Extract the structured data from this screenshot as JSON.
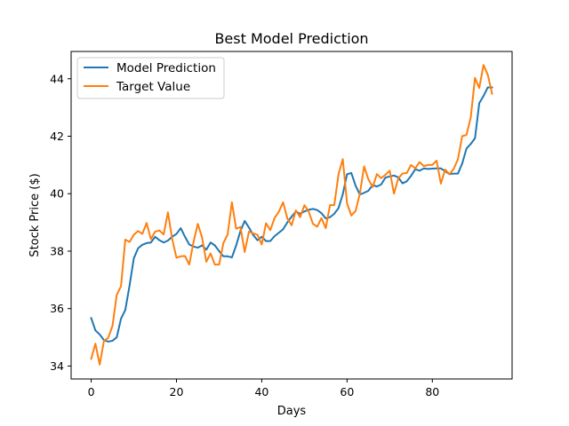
{
  "chart_data": {
    "type": "line",
    "title": "Best Model Prediction",
    "xlabel": "Days",
    "ylabel": "Stock Price ($)",
    "xlim": [
      -4.7,
      98.7
    ],
    "ylim": [
      33.55,
      44.95
    ],
    "xticks": [
      0,
      20,
      40,
      60,
      80
    ],
    "yticks": [
      34,
      36,
      38,
      40,
      42,
      44
    ],
    "grid": false,
    "legend_position": "top-left",
    "x": [
      0,
      1,
      2,
      3,
      4,
      5,
      6,
      7,
      8,
      9,
      10,
      11,
      12,
      13,
      14,
      15,
      16,
      17,
      18,
      19,
      20,
      21,
      22,
      23,
      24,
      25,
      26,
      27,
      28,
      29,
      30,
      31,
      32,
      33,
      34,
      35,
      36,
      37,
      38,
      39,
      40,
      41,
      42,
      43,
      44,
      45,
      46,
      47,
      48,
      49,
      50,
      51,
      52,
      53,
      54,
      55,
      56,
      57,
      58,
      59,
      60,
      61,
      62,
      63,
      64,
      65,
      66,
      67,
      68,
      69,
      70,
      71,
      72,
      73,
      74,
      75,
      76,
      77,
      78,
      79,
      80,
      81,
      82,
      83,
      84,
      85,
      86,
      87,
      88,
      89,
      90,
      91,
      92,
      93,
      94
    ],
    "series": [
      {
        "name": "Model Prediction",
        "color": "#1f77b4",
        "values": [
          35.67,
          35.24,
          35.1,
          34.9,
          34.85,
          34.88,
          35.0,
          35.65,
          35.95,
          36.8,
          37.75,
          38.1,
          38.22,
          38.28,
          38.3,
          38.5,
          38.38,
          38.3,
          38.37,
          38.5,
          38.6,
          38.8,
          38.5,
          38.23,
          38.16,
          38.12,
          38.2,
          38.05,
          38.3,
          38.2,
          38.0,
          37.82,
          37.82,
          37.78,
          38.2,
          38.7,
          39.05,
          38.82,
          38.56,
          38.38,
          38.5,
          38.35,
          38.35,
          38.52,
          38.64,
          38.76,
          39.0,
          39.2,
          39.38,
          39.3,
          39.38,
          39.44,
          39.47,
          39.43,
          39.32,
          39.14,
          39.18,
          39.3,
          39.5,
          39.98,
          40.68,
          40.72,
          40.28,
          39.97,
          40.03,
          40.1,
          40.3,
          40.25,
          40.32,
          40.56,
          40.6,
          40.63,
          40.57,
          40.36,
          40.43,
          40.62,
          40.85,
          40.8,
          40.88,
          40.86,
          40.87,
          40.88,
          40.88,
          40.78,
          40.68,
          40.7,
          40.7,
          41.05,
          41.57,
          41.73,
          41.93,
          43.15,
          43.4,
          43.7,
          43.7
        ]
      },
      {
        "name": "Target Value",
        "color": "#ff7f0e",
        "values": [
          34.25,
          34.78,
          34.05,
          34.88,
          34.98,
          35.4,
          36.48,
          36.78,
          38.4,
          38.32,
          38.57,
          38.7,
          38.6,
          38.98,
          38.42,
          38.68,
          38.72,
          38.58,
          39.35,
          38.42,
          37.77,
          37.82,
          37.83,
          37.53,
          38.32,
          38.95,
          38.48,
          37.63,
          37.92,
          37.53,
          37.53,
          38.28,
          38.58,
          39.7,
          38.78,
          38.84,
          37.97,
          38.68,
          38.62,
          38.57,
          38.23,
          38.97,
          38.73,
          39.15,
          39.37,
          39.7,
          39.14,
          38.9,
          39.42,
          39.18,
          39.6,
          39.38,
          38.95,
          38.85,
          39.15,
          38.8,
          39.6,
          39.6,
          40.68,
          41.2,
          39.66,
          39.24,
          39.4,
          40.0,
          40.95,
          40.5,
          40.23,
          40.68,
          40.54,
          40.66,
          40.8,
          40.0,
          40.53,
          40.7,
          40.72,
          41.0,
          40.88,
          41.1,
          40.96,
          41.0,
          41.0,
          41.15,
          40.35,
          40.84,
          40.68,
          40.86,
          41.2,
          42.0,
          42.05,
          42.65,
          44.03,
          43.68,
          44.48,
          44.14,
          43.48
        ]
      }
    ]
  }
}
